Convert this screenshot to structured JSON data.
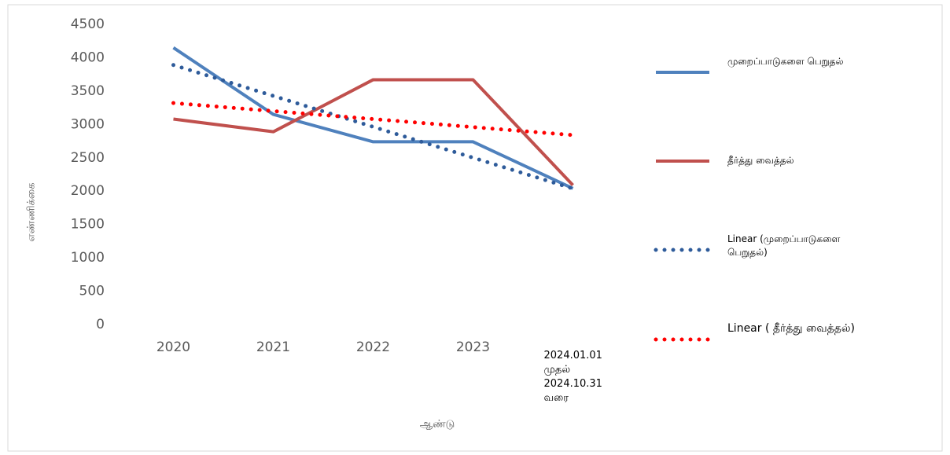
{
  "chart_data": {
    "type": "line",
    "y_label": "எண்ணிக்கை",
    "x_label": "ஆண்டு",
    "categories": [
      "2020",
      "2021",
      "2022",
      "2023",
      "2024.01.01 முதல் 2024.10.31 வரை"
    ],
    "series": [
      {
        "name": "முறைப்பாடுகளை பெறுதல்",
        "color": "#4f81bd",
        "style": "solid",
        "values": [
          4150,
          3150,
          2740,
          2740,
          2040
        ]
      },
      {
        "name": "தீர்த்து வைத்தல்",
        "color": "#c0504d",
        "style": "solid",
        "values": [
          3080,
          2890,
          3670,
          3670,
          2090
        ]
      },
      {
        "name": "Linear (முறைப்பாடுகளை பெறுதல்)",
        "color": "#2e5b9a",
        "style": "dotted",
        "values": [
          3890,
          3427,
          2964,
          2501,
          2038
        ]
      },
      {
        "name": "Linear ( தீர்த்து வைத்தல்)",
        "color": "#ff0000",
        "style": "dotted",
        "values": [
          3320,
          3200,
          3080,
          2960,
          2840
        ]
      }
    ],
    "ylim": [
      0,
      4500
    ],
    "yticks": [
      0,
      500,
      1000,
      1500,
      2000,
      2500,
      3000,
      3500,
      4000,
      4500
    ],
    "grid": false,
    "legend": "right"
  }
}
